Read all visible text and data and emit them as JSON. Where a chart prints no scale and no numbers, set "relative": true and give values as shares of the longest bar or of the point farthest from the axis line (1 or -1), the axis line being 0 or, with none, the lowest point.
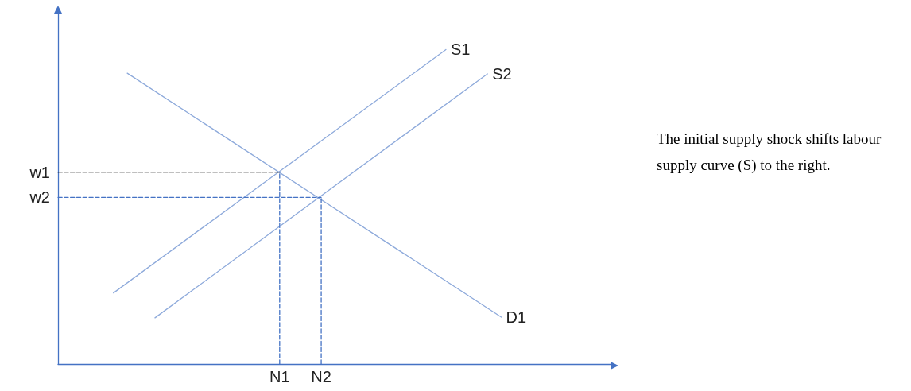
{
  "chart_data": {
    "type": "line",
    "relative": true,
    "grid": false,
    "legend": false,
    "marker": "none",
    "categories": [
      null,
      null,
      null,
      null,
      null,
      null,
      null,
      null,
      null,
      null,
      null,
      null,
      null,
      null,
      null,
      null,
      "N1",
      null,
      null,
      "N2",
      null,
      null,
      null,
      null,
      null,
      null,
      null,
      null,
      null,
      null,
      null,
      null,
      null,
      null,
      null,
      null,
      null,
      null,
      null,
      null,
      null
    ],
    "series": [
      {
        "name": "S1",
        "color": "#8eaadb",
        "values": [
          null,
          null,
          null,
          null,
          0.226,
          null,
          null,
          null,
          null,
          null,
          null,
          null,
          null,
          null,
          null,
          null,
          null,
          null,
          null,
          null,
          null,
          null,
          null,
          null,
          null,
          null,
          null,
          null,
          1.0,
          null,
          null,
          null,
          null,
          null,
          null,
          null,
          null,
          null,
          null,
          null,
          null
        ]
      },
      {
        "name": "S2",
        "color": "#8eaadb",
        "values": [
          null,
          null,
          null,
          null,
          null,
          null,
          null,
          0.147,
          null,
          null,
          null,
          null,
          null,
          null,
          null,
          null,
          null,
          null,
          null,
          null,
          null,
          null,
          null,
          null,
          null,
          null,
          null,
          null,
          null,
          null,
          null,
          0.923,
          null,
          null,
          null,
          null,
          null,
          null,
          null,
          null,
          null
        ]
      },
      {
        "name": "D1",
        "color": "#8eaadb",
        "values": [
          null,
          null,
          null,
          null,
          null,
          0.925,
          null,
          null,
          null,
          null,
          null,
          null,
          null,
          null,
          null,
          null,
          null,
          null,
          null,
          null,
          null,
          null,
          null,
          null,
          null,
          null,
          null,
          null,
          null,
          null,
          null,
          null,
          0.149,
          null,
          null,
          null,
          null,
          null,
          null,
          null,
          null
        ]
      },
      {
        "name": "w1",
        "color": "#000000",
        "line_style": "dashed",
        "values": [
          0.61,
          null,
          null,
          null,
          null,
          null,
          null,
          null,
          null,
          null,
          null,
          null,
          null,
          null,
          null,
          null,
          0.61,
          null,
          null,
          null,
          null,
          null,
          null,
          null,
          null,
          null,
          null,
          null,
          null,
          null,
          null,
          null,
          null,
          null,
          null,
          null,
          null,
          null,
          null,
          null,
          null
        ]
      },
      {
        "name": "w2",
        "color": "#4472c4",
        "line_style": "dashed",
        "values": [
          0.53,
          null,
          null,
          null,
          null,
          null,
          null,
          null,
          null,
          null,
          null,
          null,
          null,
          null,
          null,
          null,
          null,
          null,
          null,
          0.53,
          null,
          null,
          null,
          null,
          null,
          null,
          null,
          null,
          null,
          null,
          null,
          null,
          null,
          null,
          null,
          null,
          null,
          null,
          null,
          null,
          null
        ]
      },
      {
        "color": "#4472c4",
        "line_style": "dashed",
        "x": [
          "N1",
          "N1"
        ],
        "values": [
          0,
          0.61
        ]
      },
      {
        "color": "#4472c4",
        "line_style": "dashed",
        "x": [
          "N2",
          "N2"
        ],
        "values": [
          0,
          0.53
        ]
      }
    ],
    "annotations": [
      "The initial supply shock shifts labour supply curve (S) to the right."
    ]
  }
}
